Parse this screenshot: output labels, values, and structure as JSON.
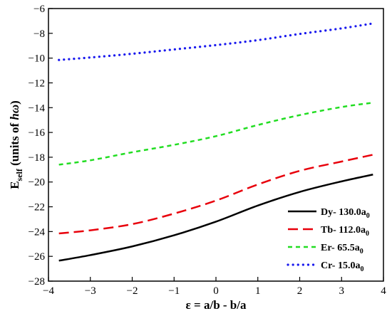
{
  "chart_data": {
    "type": "line",
    "xlabel": "ε = a/b - b/a",
    "ylabel_main": "E",
    "ylabel_sub": "self",
    "ylabel_rest": " (units of ",
    "ylabel_italic": "hω",
    "ylabel_close": ")",
    "xlim": [
      -4,
      4
    ],
    "ylim": [
      -28,
      -6
    ],
    "xticks": [
      -4,
      -3,
      -2,
      -1,
      0,
      1,
      2,
      3,
      4
    ],
    "yticks": [
      -28,
      -26,
      -24,
      -22,
      -20,
      -18,
      -16,
      -14,
      -12,
      -10,
      -8,
      -6
    ],
    "grid": false,
    "legend_position": "bottom-right",
    "x": [
      -3.75,
      -3,
      -2,
      -1,
      0,
      1,
      2,
      3,
      3.75
    ],
    "series": [
      {
        "name": "Dy- 130.0a",
        "sub": "0",
        "color": "#000000",
        "style": "solid",
        "values": [
          -26.35,
          -25.9,
          -25.2,
          -24.3,
          -23.2,
          -21.9,
          -20.8,
          -19.95,
          -19.4
        ]
      },
      {
        "name": "Tb- 112.0a",
        "sub": "0",
        "color": "#e8000b",
        "style": "dashed",
        "values": [
          -24.15,
          -23.9,
          -23.4,
          -22.55,
          -21.5,
          -20.2,
          -19.1,
          -18.35,
          -17.8
        ]
      },
      {
        "name": "Er- 65.5a",
        "sub": "0",
        "color": "#22dd22",
        "style": "shortdash",
        "values": [
          -18.6,
          -18.25,
          -17.6,
          -17.0,
          -16.3,
          -15.4,
          -14.6,
          -13.95,
          -13.6
        ]
      },
      {
        "name": "Cr- 15.0a",
        "sub": "0",
        "color": "#1a1aee",
        "style": "dotted",
        "values": [
          -10.15,
          -9.95,
          -9.65,
          -9.3,
          -8.95,
          -8.55,
          -8.05,
          -7.6,
          -7.2
        ]
      }
    ]
  }
}
